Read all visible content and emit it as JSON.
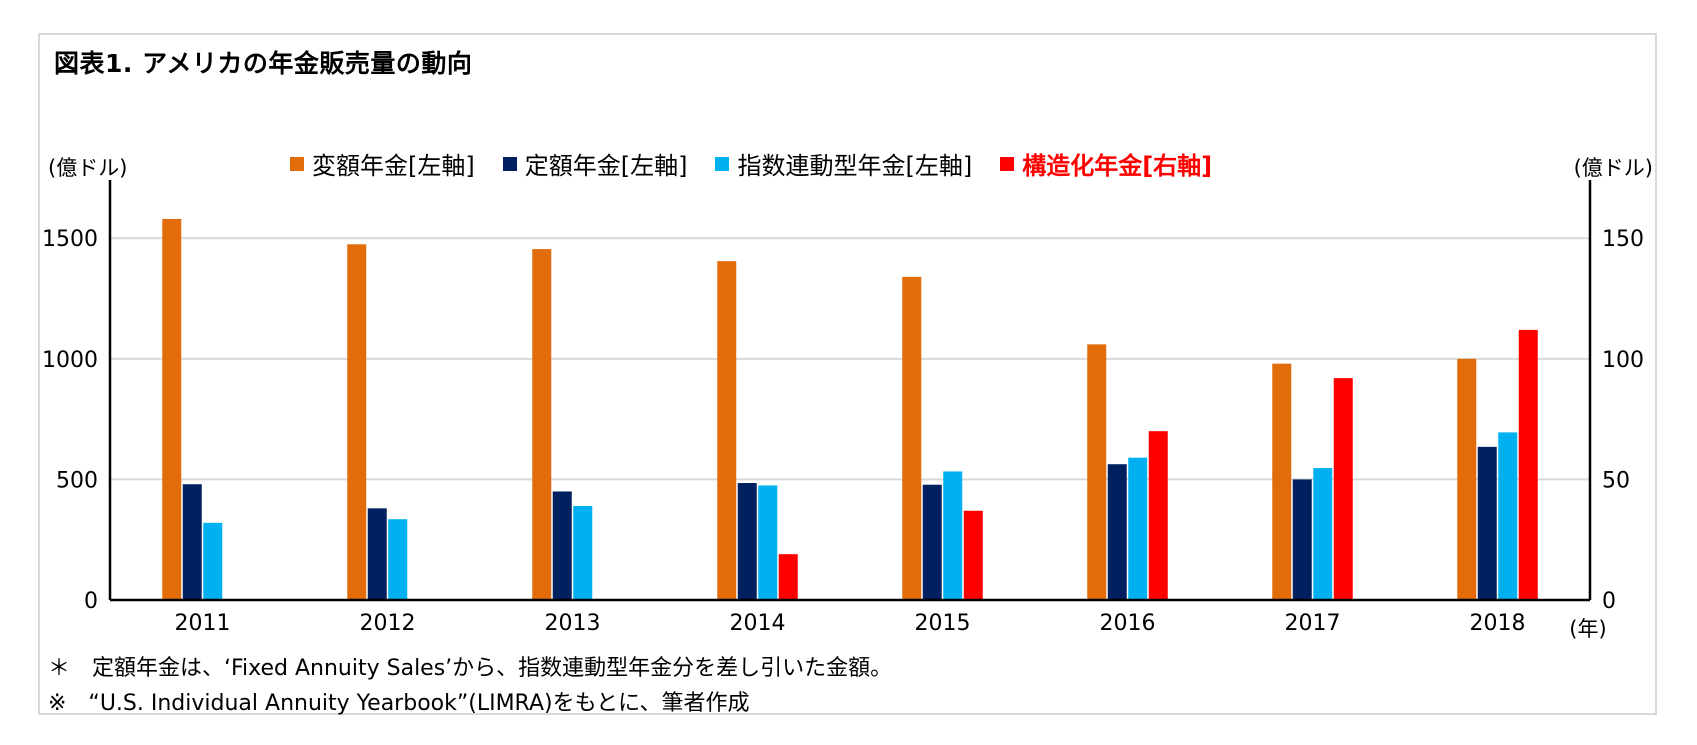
{
  "title": "図表1. アメリカの年金販売量の動向",
  "left_unit": "(億ドル)",
  "right_unit": "(億ドル)",
  "x_unit": "(年)",
  "notes": [
    "＊　定額年金は、‘Fixed Annuity Sales’から、指数連動型年金分を差し引いた金額。",
    "※　“U.S. Individual Annuity Yearbook”(LIMRA)をもとに、筆者作成"
  ],
  "colors": {
    "variable": "#E36C0A",
    "fixed": "#002060",
    "indexed": "#00B0F0",
    "structured": "#FF0000",
    "grid": "#d9d9d9",
    "axis": "#000000"
  },
  "chart_data": {
    "type": "bar",
    "categories": [
      "2011",
      "2012",
      "2013",
      "2014",
      "2015",
      "2016",
      "2017",
      "2018"
    ],
    "series": [
      {
        "name": "変額年金[左軸]",
        "axis": "left",
        "color": "#E36C0A",
        "values": [
          1580,
          1475,
          1455,
          1405,
          1340,
          1060,
          980,
          1000
        ]
      },
      {
        "name": "定額年金[左軸]",
        "axis": "left",
        "color": "#002060",
        "values": [
          480,
          380,
          450,
          485,
          478,
          563,
          500,
          635
        ]
      },
      {
        "name": "指数連動型年金[左軸]",
        "axis": "left",
        "color": "#00B0F0",
        "values": [
          320,
          335,
          390,
          475,
          533,
          590,
          547,
          695
        ]
      },
      {
        "name": "構造化年金[右軸]",
        "axis": "right",
        "color": "#FF0000",
        "values": [
          null,
          null,
          null,
          19,
          37,
          70,
          92,
          112
        ]
      }
    ],
    "y_left": {
      "range": [
        0,
        1700
      ],
      "ticks": [
        "0",
        "500",
        "1000",
        "1500"
      ],
      "tick_values": [
        0,
        500,
        1000,
        1500
      ]
    },
    "y_right": {
      "range": [
        0,
        170
      ],
      "ticks": [
        "0",
        "50",
        "100",
        "150"
      ],
      "tick_values": [
        0,
        50,
        100,
        150
      ]
    },
    "grid": true,
    "legend_position": "top"
  }
}
